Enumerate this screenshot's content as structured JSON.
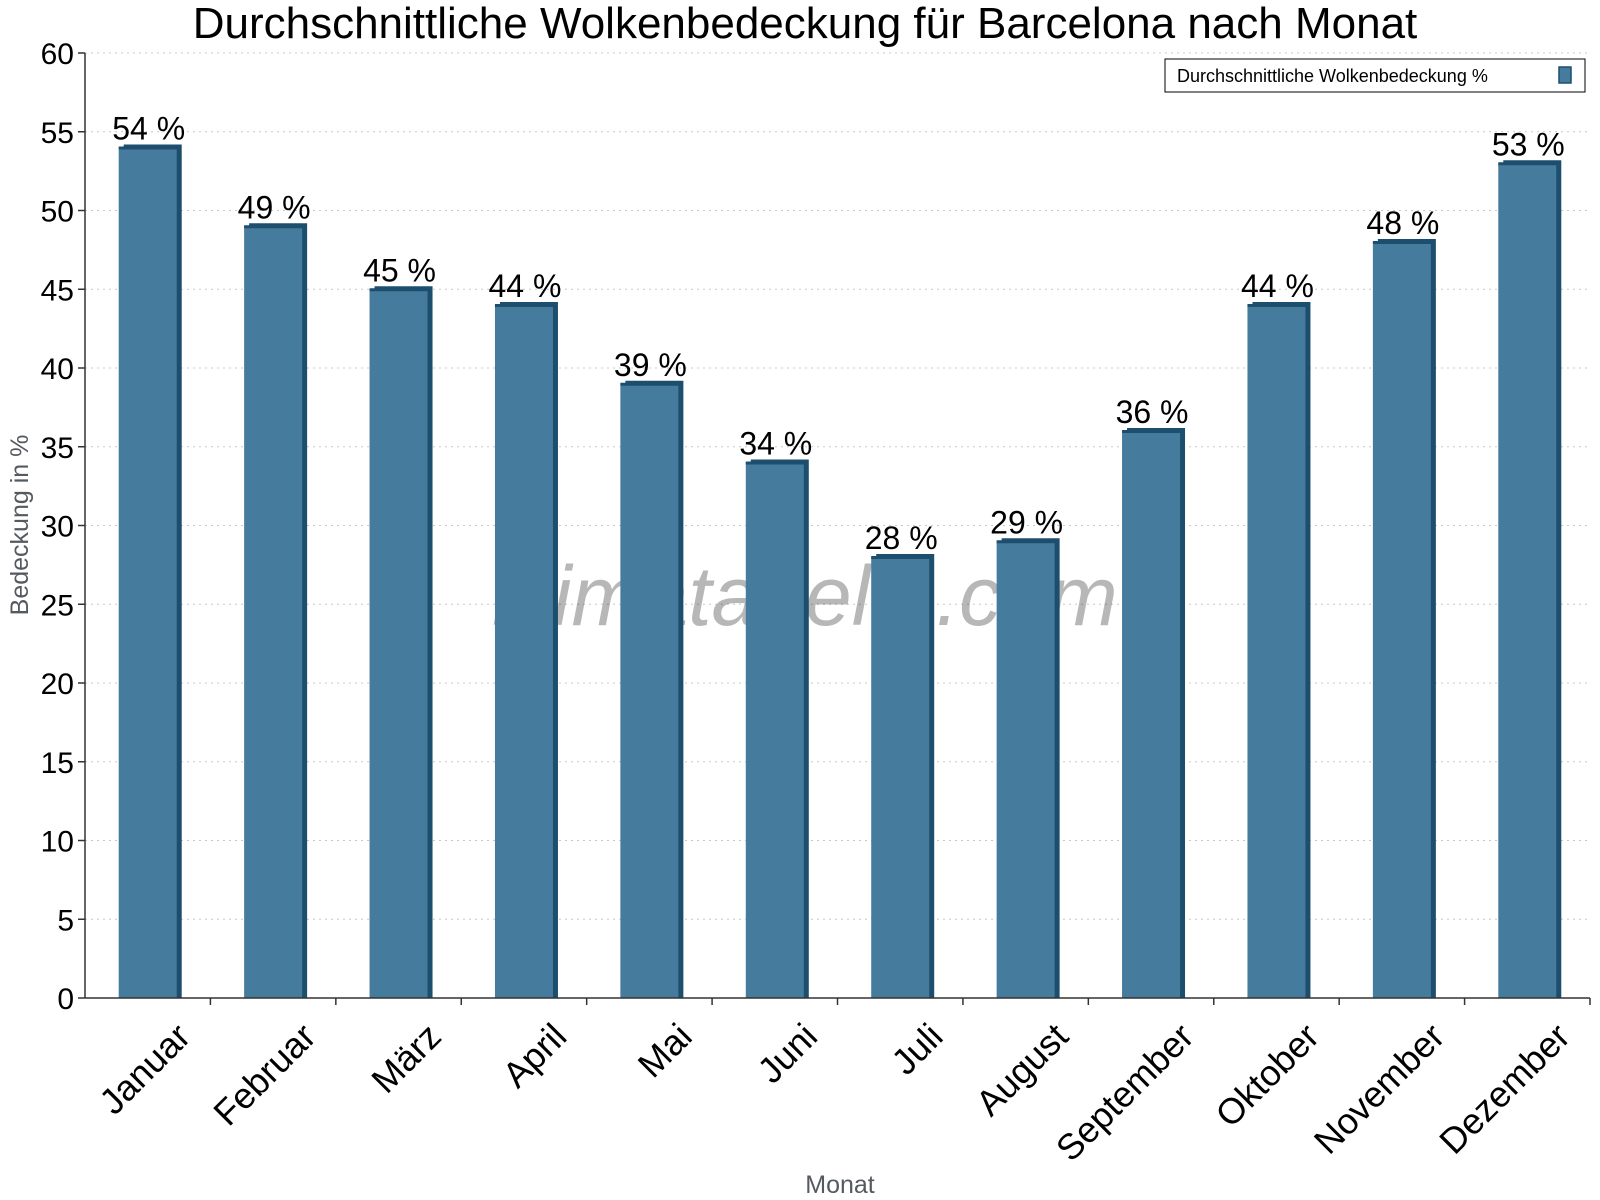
{
  "chart_data": {
    "type": "bar",
    "title": "Durchschnittliche Wolkenbedeckung für Barcelona nach Monat",
    "xlabel": "Monat",
    "ylabel": "Bedeckung in %",
    "categories": [
      "Januar",
      "Februar",
      "März",
      "April",
      "Mai",
      "Juni",
      "Juli",
      "August",
      "September",
      "Oktober",
      "November",
      "Dezember"
    ],
    "series": [
      {
        "name": "Durchschnittliche Wolkenbedeckung %",
        "values": [
          54,
          49,
          45,
          44,
          39,
          34,
          28,
          29,
          36,
          44,
          48,
          53
        ],
        "labels": [
          "54 %",
          "49 %",
          "45 %",
          "44 %",
          "39 %",
          "34 %",
          "28 %",
          "29 %",
          "36 %",
          "44 %",
          "48 %",
          "53 %"
        ],
        "color": "#457b9d",
        "edge_color": "#1d4e6e"
      }
    ],
    "ylim": [
      0,
      60
    ],
    "yticks": [
      "0",
      "5",
      "10",
      "15",
      "20",
      "25",
      "30",
      "35",
      "40",
      "45",
      "50",
      "55",
      "60"
    ],
    "grid": true,
    "legend": "top-right",
    "watermark": "klimatabelle.com"
  }
}
